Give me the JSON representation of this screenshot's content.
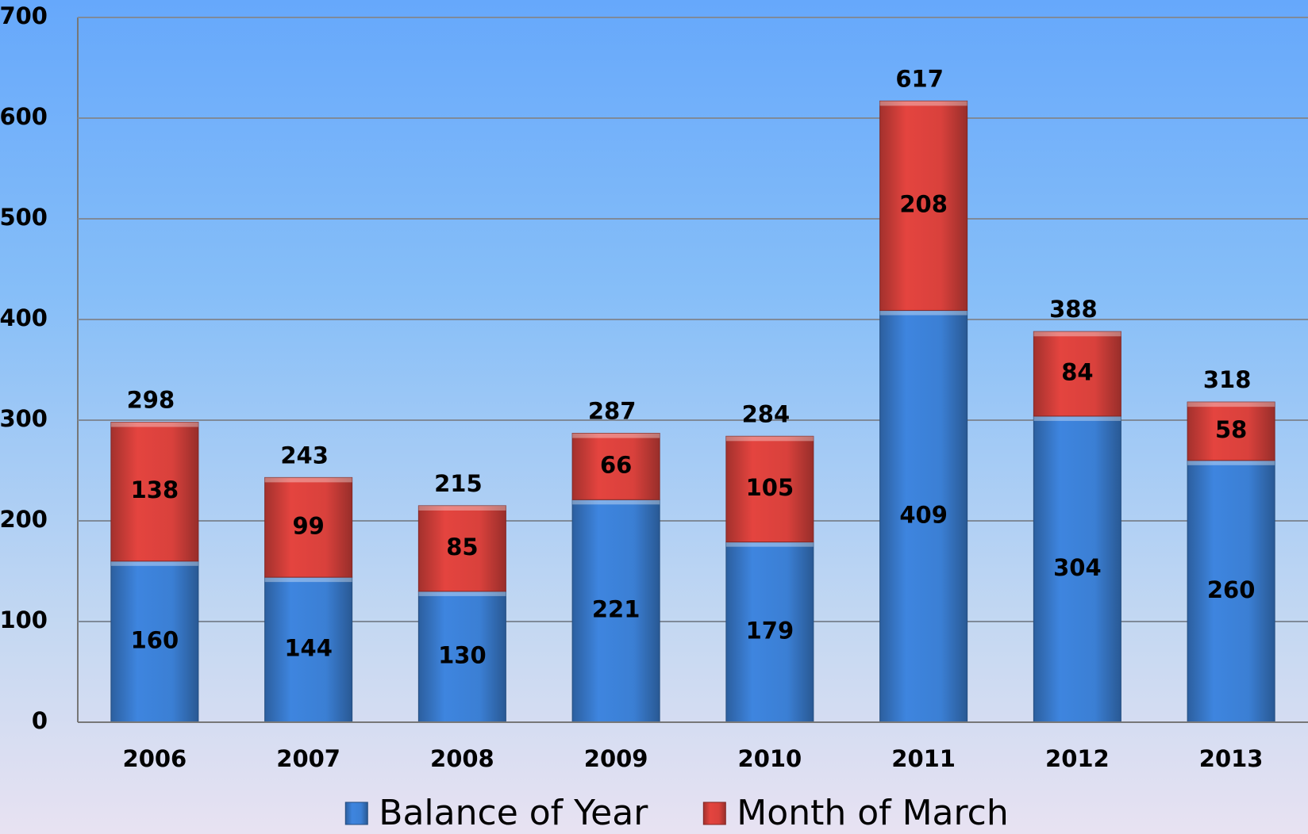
{
  "chart_data": {
    "type": "stacked-bar",
    "categories": [
      "2006",
      "2007",
      "2008",
      "2009",
      "2010",
      "2011",
      "2012",
      "2013"
    ],
    "series": [
      {
        "name": "Balance of Year",
        "color": "#3b7fd4",
        "values": [
          160,
          144,
          130,
          221,
          179,
          409,
          304,
          260
        ]
      },
      {
        "name": "Month of March",
        "color": "#d9413c",
        "values": [
          138,
          99,
          85,
          66,
          105,
          208,
          84,
          58
        ]
      }
    ],
    "totals": [
      298,
      243,
      215,
      287,
      284,
      617,
      388,
      318
    ],
    "ylim": [
      0,
      700
    ],
    "yticks": [
      0,
      100,
      200,
      300,
      400,
      500,
      600,
      700
    ],
    "grid": true,
    "legend": "bottom"
  }
}
